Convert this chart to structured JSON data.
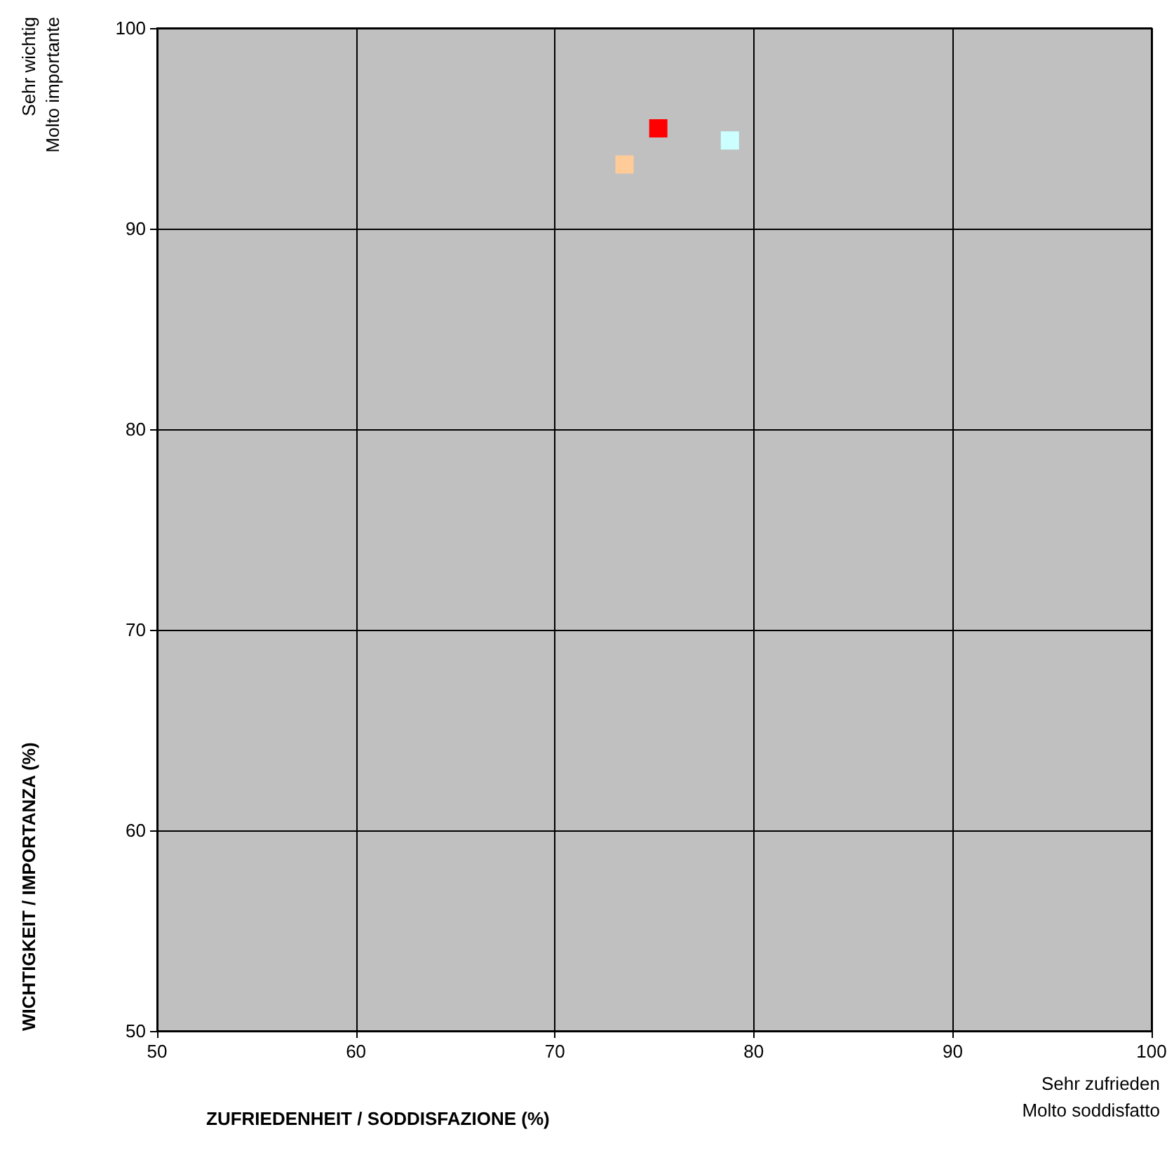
{
  "chart_data": {
    "type": "scatter",
    "xlabel": "ZUFRIEDENHEIT / SODDISFAZIONE (%)",
    "ylabel": "WICHTIGKEIT / IMPORTANZA (%)",
    "annotations": [
      "Sehr wichtig\nMolto importante",
      "Sehr zufrieden\nMolto soddisfatto"
    ],
    "series": [
      {
        "color": "#ff0000",
        "x": [
          75.2
        ],
        "values": [
          95.0
        ]
      },
      {
        "color": "#ffcc99",
        "x": [
          73.5
        ],
        "values": [
          93.2
        ]
      },
      {
        "color": "#ccffff",
        "x": [
          78.8
        ],
        "values": [
          94.4
        ]
      }
    ],
    "xlim": [
      50,
      100
    ],
    "xticks": [
      50,
      60,
      70,
      80,
      90,
      100
    ],
    "ylim": [
      50,
      100
    ],
    "yticks": [
      50,
      60,
      70,
      80,
      90,
      100
    ],
    "grid": true,
    "marker": "square"
  }
}
